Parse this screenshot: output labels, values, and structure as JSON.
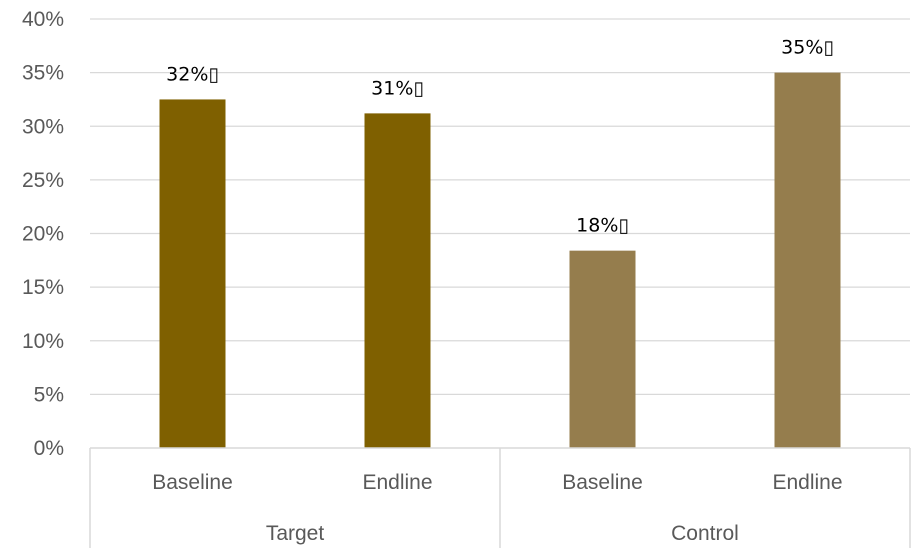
{
  "chart_data": {
    "type": "bar",
    "ylim": [
      0,
      40
    ],
    "y_ticks": [
      "0%",
      "5%",
      "10%",
      "15%",
      "20%",
      "25%",
      "30%",
      "35%",
      "40%"
    ],
    "grid": true,
    "groups": [
      {
        "name": "Target",
        "color": "#7f6000",
        "bars": [
          {
            "category": "Baseline",
            "value": 32.5,
            "label": "32%"
          },
          {
            "category": "Endline",
            "value": 31.2,
            "label": "31%"
          }
        ]
      },
      {
        "name": "Control",
        "color": "#957d4d",
        "bars": [
          {
            "category": "Baseline",
            "value": 18.4,
            "label": "18%"
          },
          {
            "category": "Endline",
            "value": 35.0,
            "label": "35%"
          }
        ]
      }
    ]
  },
  "label_suffix_glyph": "▯"
}
